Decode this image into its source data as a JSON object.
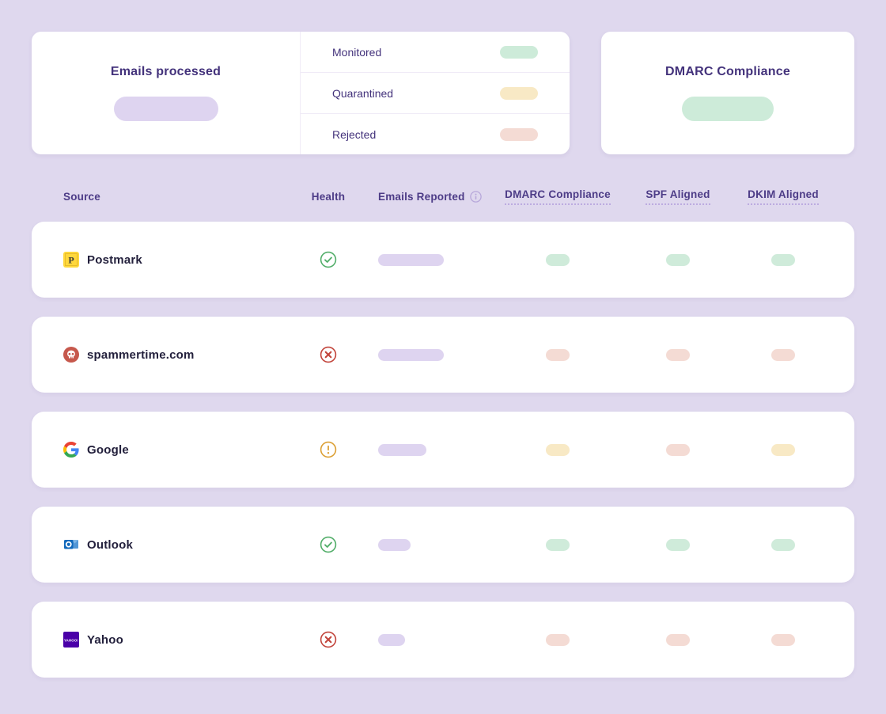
{
  "page": {
    "background_color": "#DFD8EE"
  },
  "summary": {
    "emails_processed": {
      "title": "Emails processed",
      "value_pill_color": "#DED4F0"
    },
    "legend": [
      {
        "label": "Monitored",
        "pill_color": "#CDEBD9"
      },
      {
        "label": "Quarantined",
        "pill_color": "#F8E9C5"
      },
      {
        "label": "Rejected",
        "pill_color": "#F4DBD4"
      }
    ],
    "dmarc_compliance": {
      "title": "DMARC Compliance",
      "value_pill_color": "#CDEBD9"
    }
  },
  "table": {
    "columns": [
      {
        "label": "Source"
      },
      {
        "label": "Health"
      },
      {
        "label": "Emails Reported",
        "has_info_icon": true
      },
      {
        "label": "DMARC Compliance",
        "underlined": true
      },
      {
        "label": "SPF Aligned",
        "underlined": true
      },
      {
        "label": "DKIM Aligned",
        "underlined": true
      }
    ],
    "rows": [
      {
        "source": "Postmark",
        "icon": "postmark-icon",
        "health": "healthy",
        "emails_pill_width": 83,
        "dmarc": "good",
        "spf": "good",
        "dkim": "good"
      },
      {
        "source": "spammertime.com",
        "icon": "spammertime-icon",
        "health": "critical",
        "emails_pill_width": 83,
        "dmarc": "bad",
        "spf": "bad",
        "dkim": "bad"
      },
      {
        "source": "Google",
        "icon": "google-icon",
        "health": "warning",
        "emails_pill_width": 61,
        "dmarc": "warn",
        "spf": "bad",
        "dkim": "warn"
      },
      {
        "source": "Outlook",
        "icon": "outlook-icon",
        "health": "healthy",
        "emails_pill_width": 41,
        "dmarc": "good",
        "spf": "good",
        "dkim": "good"
      },
      {
        "source": "Yahoo",
        "icon": "yahoo-icon",
        "health": "critical",
        "emails_pill_width": 34,
        "dmarc": "bad",
        "spf": "bad",
        "dkim": "bad"
      }
    ]
  },
  "status_colors": {
    "good": "#CFEBDA",
    "warn": "#F8E9C5",
    "bad": "#F4DBD4",
    "neutral": "#DED4F0",
    "health_ok": "#53AE6A",
    "health_warning": "#DCA035",
    "health_critical": "#C2453C"
  }
}
